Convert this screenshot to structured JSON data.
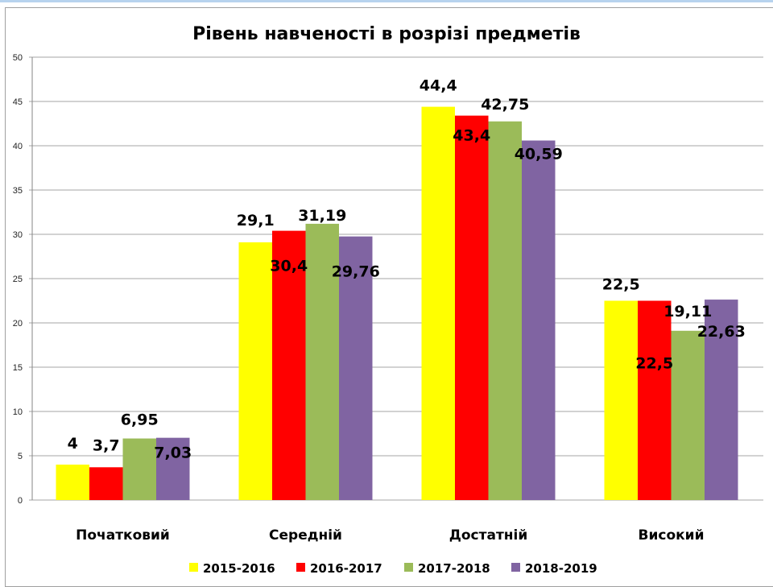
{
  "chart_data": {
    "type": "bar",
    "title": "Рівень навченості в розрізі предметів",
    "xlabel": "",
    "ylabel": "",
    "ylim": [
      0,
      50
    ],
    "yticks": [
      0,
      5,
      10,
      15,
      20,
      25,
      30,
      35,
      40,
      45,
      50
    ],
    "grid": true,
    "legend_position": "bottom",
    "categories": [
      "Початковий",
      "Середній",
      "Достатній",
      "Високий"
    ],
    "series": [
      {
        "name": "2015-2016",
        "color": "#ffff00",
        "values": [
          4,
          29.1,
          44.4,
          22.5
        ],
        "labels": [
          "4",
          "29,1",
          "44,4",
          "22,5"
        ]
      },
      {
        "name": "2016-2017",
        "color": "#ff0000",
        "values": [
          3.7,
          30.4,
          43.4,
          22.5
        ],
        "labels": [
          "3,7",
          "30,4",
          "43,4",
          "22,5"
        ]
      },
      {
        "name": "2017-2018",
        "color": "#9bbb59",
        "values": [
          6.95,
          31.19,
          42.75,
          19.11
        ],
        "labels": [
          "6,95",
          "31,19",
          "42,75",
          "19,11"
        ]
      },
      {
        "name": "2018-2019",
        "color": "#8064a2",
        "values": [
          7.03,
          29.76,
          40.59,
          22.63
        ],
        "labels": [
          "7,03",
          "29,76",
          "40,59",
          "22,63"
        ]
      }
    ]
  }
}
